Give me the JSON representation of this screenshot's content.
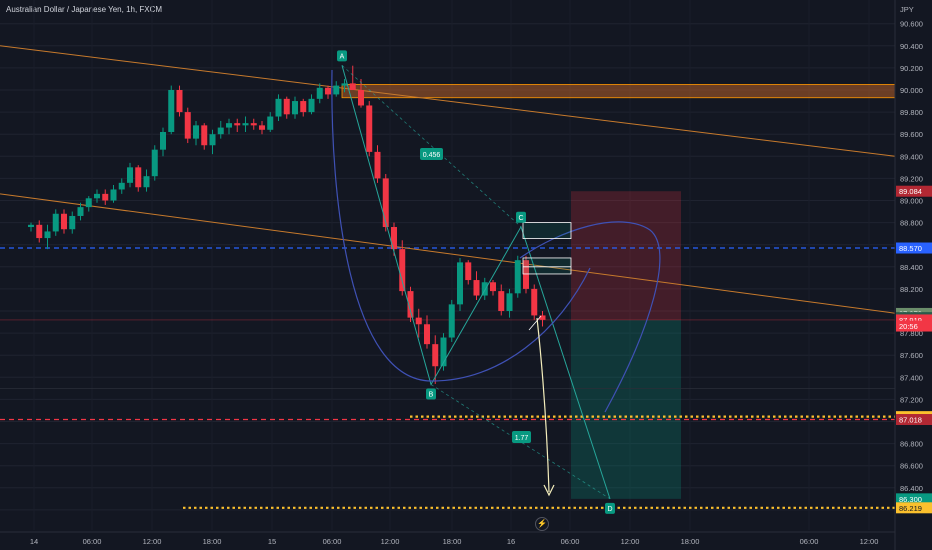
{
  "header": {
    "title": "Australian Dollar / Japanese Yen, 1h, FXCM",
    "currency": "JPY"
  },
  "chart_data": {
    "type": "candlestick",
    "symbol": "AUDJPY",
    "y_ticks": [
      "90.600",
      "90.400",
      "90.200",
      "90.000",
      "89.800",
      "89.600",
      "89.400",
      "89.200",
      "89.000",
      "88.800",
      "88.600",
      "88.400",
      "88.200",
      "88.000",
      "87.800",
      "87.600",
      "87.400",
      "87.200",
      "87.000",
      "86.800",
      "86.600",
      "86.400",
      "86.200"
    ],
    "x_ticks": [
      "14",
      "06:00",
      "12:00",
      "18:00",
      "15",
      "06:00",
      "12:00",
      "18:00",
      "16",
      "06:00",
      "12:00",
      "18:00",
      "06:00",
      "12:00"
    ],
    "price_tags": [
      {
        "label": "89.084",
        "value": 89.084,
        "bg": "#b22833",
        "fg": "#ffffff"
      },
      {
        "label": "88.570",
        "value": 88.57,
        "bg": "#2962ff",
        "fg": "#ffffff"
      },
      {
        "label": "87.978",
        "value": 87.978,
        "bg": "#6b8e6b",
        "fg": "#ffffff"
      },
      {
        "label": "87.940",
        "value": 87.94,
        "bg": "#2a5a4a",
        "fg": "#ffffff"
      },
      {
        "label": "87.919",
        "value": 87.919,
        "bg": "#f23645",
        "fg": "#ffffff"
      },
      {
        "label": "20:56",
        "value": 87.864,
        "bg": "#f23645",
        "fg": "#ffffff"
      },
      {
        "label": "87.044",
        "value": 87.044,
        "bg": "#fbc02d",
        "fg": "#131722"
      },
      {
        "label": "87.018",
        "value": 87.018,
        "bg": "#b22833",
        "fg": "#ffffff"
      },
      {
        "label": "86.300",
        "value": 86.3,
        "bg": "#089981",
        "fg": "#ffffff"
      },
      {
        "label": "86.219",
        "value": 86.219,
        "bg": "#fbc02d",
        "fg": "#131722"
      }
    ],
    "pattern_points": [
      {
        "label": "A",
        "value": 90.223
      },
      {
        "label": "B",
        "value": 87.335
      },
      {
        "label": "C",
        "value": 88.762
      },
      {
        "label": "D",
        "value": 86.3
      }
    ],
    "ratios": [
      "0.456",
      "1.77"
    ],
    "candles": [
      [
        88.76,
        88.8,
        88.72,
        88.78
      ],
      [
        88.78,
        88.82,
        88.62,
        88.66
      ],
      [
        88.66,
        88.78,
        88.56,
        88.72
      ],
      [
        88.72,
        88.92,
        88.68,
        88.88
      ],
      [
        88.88,
        88.92,
        88.7,
        88.74
      ],
      [
        88.74,
        88.9,
        88.7,
        88.86
      ],
      [
        88.86,
        88.98,
        88.82,
        88.94
      ],
      [
        88.94,
        89.04,
        88.9,
        89.02
      ],
      [
        89.02,
        89.1,
        88.98,
        89.06
      ],
      [
        89.06,
        89.1,
        88.96,
        89.0
      ],
      [
        89.0,
        89.14,
        88.98,
        89.1
      ],
      [
        89.1,
        89.2,
        89.06,
        89.16
      ],
      [
        89.16,
        89.34,
        89.12,
        89.3
      ],
      [
        89.3,
        89.32,
        89.08,
        89.12
      ],
      [
        89.12,
        89.28,
        89.08,
        89.22
      ],
      [
        89.22,
        89.5,
        89.18,
        89.46
      ],
      [
        89.46,
        89.66,
        89.4,
        89.62
      ],
      [
        89.62,
        90.04,
        89.6,
        90.0
      ],
      [
        90.0,
        90.04,
        89.76,
        89.8
      ],
      [
        89.8,
        89.84,
        89.52,
        89.56
      ],
      [
        89.56,
        89.72,
        89.5,
        89.68
      ],
      [
        89.68,
        89.7,
        89.46,
        89.5
      ],
      [
        89.5,
        89.64,
        89.42,
        89.6
      ],
      [
        89.6,
        89.72,
        89.56,
        89.66
      ],
      [
        89.66,
        89.74,
        89.6,
        89.7
      ],
      [
        89.7,
        89.74,
        89.62,
        89.68
      ],
      [
        89.68,
        89.76,
        89.62,
        89.7
      ],
      [
        89.7,
        89.74,
        89.64,
        89.68
      ],
      [
        89.68,
        89.72,
        89.6,
        89.64
      ],
      [
        89.64,
        89.8,
        89.62,
        89.76
      ],
      [
        89.76,
        89.96,
        89.72,
        89.92
      ],
      [
        89.92,
        89.94,
        89.74,
        89.78
      ],
      [
        89.78,
        89.94,
        89.74,
        89.9
      ],
      [
        89.9,
        89.92,
        89.76,
        89.8
      ],
      [
        89.8,
        89.96,
        89.78,
        89.92
      ],
      [
        89.92,
        90.06,
        89.88,
        90.02
      ],
      [
        90.02,
        90.04,
        89.92,
        89.96
      ],
      [
        89.96,
        90.08,
        89.94,
        90.04
      ],
      [
        90.04,
        90.1,
        89.98,
        90.06
      ],
      [
        90.06,
        90.22,
        90.0,
        90.0
      ],
      [
        90.0,
        90.1,
        89.84,
        89.86
      ],
      [
        89.86,
        89.9,
        89.4,
        89.44
      ],
      [
        89.44,
        89.5,
        89.16,
        89.2
      ],
      [
        89.2,
        89.24,
        88.72,
        88.76
      ],
      [
        88.76,
        88.8,
        88.5,
        88.56
      ],
      [
        88.56,
        88.64,
        88.14,
        88.18
      ],
      [
        88.18,
        88.22,
        87.9,
        87.94
      ],
      [
        87.94,
        88.02,
        87.76,
        87.88
      ],
      [
        87.88,
        87.96,
        87.66,
        87.7
      ],
      [
        87.7,
        87.78,
        87.34,
        87.5
      ],
      [
        87.5,
        87.8,
        87.46,
        87.76
      ],
      [
        87.76,
        88.1,
        87.72,
        88.06
      ],
      [
        88.06,
        88.48,
        88.0,
        88.44
      ],
      [
        88.44,
        88.46,
        88.24,
        88.28
      ],
      [
        88.28,
        88.36,
        88.1,
        88.14
      ],
      [
        88.14,
        88.3,
        88.1,
        88.26
      ],
      [
        88.26,
        88.28,
        88.14,
        88.18
      ],
      [
        88.18,
        88.24,
        87.96,
        88.0
      ],
      [
        88.0,
        88.2,
        87.94,
        88.16
      ],
      [
        88.16,
        88.5,
        88.12,
        88.46
      ],
      [
        88.46,
        88.5,
        88.16,
        88.2
      ],
      [
        88.2,
        88.24,
        87.92,
        87.96
      ],
      [
        87.96,
        88.0,
        87.86,
        87.92
      ]
    ]
  }
}
